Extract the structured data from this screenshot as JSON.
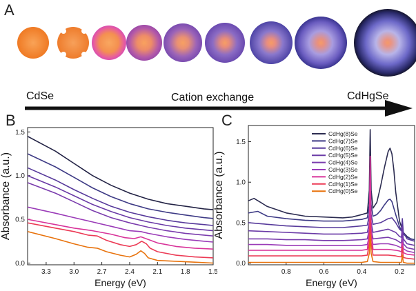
{
  "panel_a": {
    "letter": "A",
    "left_label": "CdSe",
    "center_label": "Cation exchange",
    "right_label": "CdHgSe"
  },
  "chart_data": [
    {
      "panel": "B",
      "type": "line",
      "xlabel": "Energy (eV)",
      "ylabel": "Absorbance (a.u.)",
      "x_reversed": true,
      "xlim": [
        3.5,
        1.5
      ],
      "ylim": [
        -0.02,
        1.55
      ],
      "xticks": [
        "3.3",
        "3.0",
        "2.7",
        "2.4",
        "2.1",
        "1.8",
        "1.5"
      ],
      "yticks": [
        "0.0",
        "0.5",
        "1.0",
        "1.5"
      ],
      "colors": [
        "#e8720c",
        "#ec3a55",
        "#d8349a",
        "#9a3bb8",
        "#7a3cad",
        "#6a3aa6",
        "#573a9b",
        "#3d3a85",
        "#232345"
      ],
      "series": [
        {
          "x": [
            3.5,
            3.2,
            3.0,
            2.85,
            2.75,
            2.65,
            2.5,
            2.4,
            2.33,
            2.28,
            2.24,
            2.2,
            2.1,
            1.9,
            1.7,
            1.5
          ],
          "values": [
            0.36,
            0.28,
            0.22,
            0.18,
            0.17,
            0.13,
            0.09,
            0.07,
            0.1,
            0.14,
            0.11,
            0.06,
            0.03,
            0.02,
            0.01,
            0.0
          ]
        },
        {
          "x": [
            3.5,
            3.2,
            3.0,
            2.85,
            2.75,
            2.65,
            2.5,
            2.4,
            2.33,
            2.27,
            2.22,
            2.18,
            2.1,
            1.9,
            1.7,
            1.5
          ],
          "values": [
            0.46,
            0.4,
            0.36,
            0.32,
            0.31,
            0.26,
            0.21,
            0.19,
            0.21,
            0.25,
            0.22,
            0.17,
            0.13,
            0.09,
            0.07,
            0.06
          ]
        },
        {
          "x": [
            3.5,
            3.2,
            3.0,
            2.8,
            2.6,
            2.45,
            2.35,
            2.28,
            2.2,
            2.1,
            1.9,
            1.7,
            1.5
          ],
          "values": [
            0.5,
            0.44,
            0.4,
            0.37,
            0.33,
            0.29,
            0.28,
            0.3,
            0.27,
            0.23,
            0.19,
            0.17,
            0.16
          ]
        },
        {
          "x": [
            3.5,
            3.2,
            3.0,
            2.8,
            2.6,
            2.4,
            2.28,
            2.2,
            2.0,
            1.8,
            1.6,
            1.5
          ],
          "values": [
            0.64,
            0.57,
            0.52,
            0.47,
            0.42,
            0.37,
            0.36,
            0.34,
            0.3,
            0.27,
            0.25,
            0.24
          ]
        },
        {
          "x": [
            3.5,
            3.2,
            3.0,
            2.8,
            2.6,
            2.4,
            2.2,
            2.0,
            1.8,
            1.6,
            1.5
          ],
          "values": [
            0.92,
            0.8,
            0.7,
            0.6,
            0.52,
            0.46,
            0.41,
            0.37,
            0.34,
            0.32,
            0.31
          ]
        },
        {
          "x": [
            3.5,
            3.2,
            3.0,
            2.8,
            2.6,
            2.4,
            2.2,
            2.0,
            1.8,
            1.6,
            1.5
          ],
          "values": [
            1.0,
            0.87,
            0.77,
            0.67,
            0.59,
            0.52,
            0.47,
            0.43,
            0.4,
            0.38,
            0.37
          ]
        },
        {
          "x": [
            3.5,
            3.2,
            3.0,
            2.8,
            2.6,
            2.4,
            2.2,
            2.0,
            1.8,
            1.6,
            1.5
          ],
          "values": [
            1.09,
            0.95,
            0.84,
            0.74,
            0.65,
            0.58,
            0.53,
            0.49,
            0.46,
            0.44,
            0.43
          ]
        },
        {
          "x": [
            3.5,
            3.2,
            3.0,
            2.8,
            2.6,
            2.4,
            2.2,
            2.0,
            1.8,
            1.6,
            1.5
          ],
          "values": [
            1.25,
            1.1,
            0.98,
            0.86,
            0.76,
            0.68,
            0.62,
            0.58,
            0.55,
            0.52,
            0.51
          ]
        },
        {
          "x": [
            3.5,
            3.2,
            3.0,
            2.8,
            2.6,
            2.4,
            2.2,
            2.0,
            1.8,
            1.6,
            1.5
          ],
          "values": [
            1.45,
            1.28,
            1.14,
            1.0,
            0.89,
            0.8,
            0.73,
            0.68,
            0.65,
            0.62,
            0.61
          ]
        }
      ]
    },
    {
      "panel": "C",
      "type": "line",
      "xlabel": "Energy (eV)",
      "ylabel": "Absorbance (a.u.)",
      "x_reversed": true,
      "xlim": [
        1.0,
        0.12
      ],
      "ylim": [
        -0.02,
        1.7
      ],
      "xticks": [
        "0.8",
        "0.6",
        "0.4",
        "0.2"
      ],
      "yticks": [
        "0.0",
        "0.5",
        "1.0",
        "1.5"
      ],
      "legend": [
        "CdHg(8)Se",
        "CdHg(7)Se",
        "CdHg(6)Se",
        "CdHg(5)Se",
        "CdHg(4)Se",
        "CdHg(3)Se",
        "CdHg(2)Se",
        "CdHg(1)Se",
        "CdHg(0)Se"
      ],
      "legend_position": "top-right",
      "colors": [
        "#2b2b50",
        "#3d3a85",
        "#573a9b",
        "#6a3aa6",
        "#7a3cad",
        "#9a3bb8",
        "#d8349a",
        "#ec3a55",
        "#e8720c"
      ],
      "series": [
        {
          "name": "CdHg(8)Se",
          "x": [
            1.0,
            0.97,
            0.9,
            0.8,
            0.7,
            0.6,
            0.5,
            0.45,
            0.4,
            0.37,
            0.36,
            0.355,
            0.35,
            0.34,
            0.32,
            0.3,
            0.28,
            0.26,
            0.25,
            0.24,
            0.23,
            0.22,
            0.2,
            0.18,
            0.16,
            0.14,
            0.12
          ],
          "values": [
            0.77,
            0.8,
            0.7,
            0.62,
            0.58,
            0.57,
            0.56,
            0.57,
            0.6,
            0.62,
            0.9,
            1.65,
            0.9,
            0.68,
            0.75,
            0.95,
            1.18,
            1.38,
            1.42,
            1.35,
            1.15,
            0.88,
            0.52,
            0.38,
            0.33,
            0.3,
            0.29
          ]
        },
        {
          "name": "CdHg(7)Se",
          "x": [
            1.0,
            0.95,
            0.9,
            0.8,
            0.7,
            0.6,
            0.5,
            0.4,
            0.37,
            0.36,
            0.355,
            0.35,
            0.34,
            0.32,
            0.3,
            0.28,
            0.26,
            0.25,
            0.24,
            0.22,
            0.2,
            0.18,
            0.16,
            0.14,
            0.12
          ],
          "values": [
            0.62,
            0.64,
            0.58,
            0.55,
            0.53,
            0.52,
            0.52,
            0.54,
            0.56,
            0.72,
            1.2,
            0.72,
            0.58,
            0.6,
            0.65,
            0.72,
            0.78,
            0.79,
            0.76,
            0.6,
            0.45,
            0.36,
            0.32,
            0.3,
            0.29
          ]
        },
        {
          "name": "CdHg(6)Se",
          "x": [
            1.0,
            0.9,
            0.8,
            0.7,
            0.6,
            0.5,
            0.4,
            0.37,
            0.36,
            0.355,
            0.35,
            0.34,
            0.3,
            0.26,
            0.24,
            0.22,
            0.2,
            0.19,
            0.185,
            0.18,
            0.16,
            0.12
          ],
          "values": [
            0.5,
            0.48,
            0.46,
            0.45,
            0.44,
            0.44,
            0.46,
            0.47,
            0.6,
            0.95,
            0.6,
            0.48,
            0.5,
            0.55,
            0.56,
            0.5,
            0.42,
            0.4,
            0.55,
            0.38,
            0.3,
            0.27
          ]
        },
        {
          "name": "CdHg(5)Se",
          "x": [
            1.0,
            0.9,
            0.8,
            0.7,
            0.6,
            0.5,
            0.4,
            0.37,
            0.36,
            0.355,
            0.35,
            0.34,
            0.3,
            0.26,
            0.22,
            0.2,
            0.19,
            0.185,
            0.18,
            0.16,
            0.12
          ],
          "values": [
            0.4,
            0.39,
            0.38,
            0.37,
            0.36,
            0.36,
            0.37,
            0.38,
            0.5,
            0.8,
            0.5,
            0.38,
            0.4,
            0.42,
            0.38,
            0.33,
            0.32,
            0.45,
            0.3,
            0.24,
            0.22
          ]
        },
        {
          "name": "CdHg(4)Se",
          "x": [
            1.0,
            0.9,
            0.8,
            0.7,
            0.6,
            0.5,
            0.4,
            0.37,
            0.36,
            0.355,
            0.35,
            0.34,
            0.3,
            0.26,
            0.22,
            0.2,
            0.19,
            0.185,
            0.18,
            0.16,
            0.12
          ],
          "values": [
            0.3,
            0.3,
            0.29,
            0.29,
            0.28,
            0.28,
            0.29,
            0.3,
            0.42,
            0.7,
            0.42,
            0.3,
            0.31,
            0.32,
            0.29,
            0.26,
            0.25,
            0.38,
            0.24,
            0.19,
            0.17
          ]
        },
        {
          "name": "CdHg(3)Se",
          "x": [
            1.0,
            0.9,
            0.8,
            0.7,
            0.6,
            0.5,
            0.4,
            0.37,
            0.36,
            0.355,
            0.35,
            0.34,
            0.3,
            0.26,
            0.22,
            0.2,
            0.19,
            0.185,
            0.18,
            0.16,
            0.12
          ],
          "values": [
            0.23,
            0.23,
            0.22,
            0.22,
            0.22,
            0.22,
            0.22,
            0.23,
            0.34,
            0.6,
            0.34,
            0.23,
            0.24,
            0.24,
            0.22,
            0.2,
            0.19,
            0.3,
            0.18,
            0.15,
            0.13
          ]
        },
        {
          "name": "CdHg(2)Se",
          "x": [
            1.0,
            0.9,
            0.8,
            0.7,
            0.6,
            0.5,
            0.4,
            0.37,
            0.36,
            0.355,
            0.35,
            0.34,
            0.3,
            0.26,
            0.22,
            0.2,
            0.19,
            0.185,
            0.18,
            0.16,
            0.12
          ],
          "values": [
            0.16,
            0.16,
            0.16,
            0.16,
            0.16,
            0.16,
            0.16,
            0.17,
            0.4,
            1.32,
            0.4,
            0.17,
            0.17,
            0.17,
            0.16,
            0.15,
            0.14,
            0.25,
            0.13,
            0.11,
            0.1
          ]
        },
        {
          "name": "CdHg(1)Se",
          "x": [
            1.0,
            0.9,
            0.8,
            0.7,
            0.6,
            0.5,
            0.4,
            0.37,
            0.36,
            0.355,
            0.35,
            0.34,
            0.3,
            0.26,
            0.22,
            0.2,
            0.19,
            0.185,
            0.18,
            0.16,
            0.12
          ],
          "values": [
            0.09,
            0.09,
            0.09,
            0.09,
            0.09,
            0.09,
            0.09,
            0.1,
            0.25,
            0.55,
            0.25,
            0.1,
            0.1,
            0.1,
            0.09,
            0.08,
            0.08,
            0.2,
            0.07,
            0.06,
            0.05
          ]
        },
        {
          "name": "CdHg(0)Se",
          "x": [
            1.0,
            0.9,
            0.8,
            0.7,
            0.6,
            0.5,
            0.4,
            0.37,
            0.36,
            0.355,
            0.35,
            0.34,
            0.3,
            0.26,
            0.22,
            0.2,
            0.19,
            0.185,
            0.18,
            0.16,
            0.12
          ],
          "values": [
            0.01,
            0.01,
            0.01,
            0.01,
            0.01,
            0.01,
            0.01,
            0.02,
            0.12,
            0.35,
            0.12,
            0.02,
            0.01,
            0.01,
            0.01,
            0.01,
            0.01,
            0.1,
            0.01,
            0.0,
            0.0
          ]
        }
      ]
    }
  ]
}
